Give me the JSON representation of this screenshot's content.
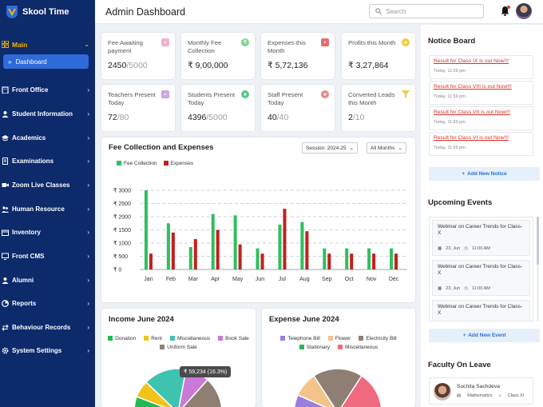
{
  "app": {
    "name": "Skool Time"
  },
  "header": {
    "title": "Admin Dashboard",
    "search_placeholder": "Search"
  },
  "sidebar": {
    "main_label": "Main",
    "dashboard_label": "Dashboard",
    "items": [
      {
        "label": "Front Office",
        "icon": "building-icon"
      },
      {
        "label": "Student Information",
        "icon": "user-icon"
      },
      {
        "label": "Academics",
        "icon": "graduation-cap-icon"
      },
      {
        "label": "Examinations",
        "icon": "document-icon"
      },
      {
        "label": "Zoom Live Classes",
        "icon": "video-icon"
      },
      {
        "label": "Human Resource",
        "icon": "users-icon"
      },
      {
        "label": "Inventory",
        "icon": "box-icon"
      },
      {
        "label": "Front CMS",
        "icon": "monitor-icon"
      },
      {
        "label": "Alumni",
        "icon": "user-circle-icon"
      },
      {
        "label": "Reports",
        "icon": "chart-pie-icon"
      },
      {
        "label": "Behaviour Records",
        "icon": "arrows-icon"
      },
      {
        "label": "System Settings",
        "icon": "gear-icon"
      }
    ]
  },
  "stats": [
    {
      "label": "Fee Awaiting payment",
      "value": "2450",
      "total": "/5000",
      "icon": "wallet-icon",
      "color": "#f3b0cf"
    },
    {
      "label": "Monthly Fee Collection",
      "value": "₹ 9,00,000",
      "total": "",
      "icon": "rupee-icon",
      "color": "#7fd48f"
    },
    {
      "label": "Expenses this Month",
      "value": "₹ 5,72,136",
      "total": "",
      "icon": "expense-icon",
      "color": "#e86a6a"
    },
    {
      "label": "Profits this Month",
      "value": "₹ 3,27,864",
      "total": "",
      "icon": "coins-icon",
      "color": "#f2cc3c"
    },
    {
      "label": "Teachers Present Today",
      "value": "72",
      "total": "/80",
      "icon": "briefcase-icon",
      "color": "#cba6e6"
    },
    {
      "label": "Students Present Today",
      "value": "4396",
      "total": "/5000",
      "icon": "student-icon",
      "color": "#58c98a"
    },
    {
      "label": "Staff Present Today",
      "value": "40",
      "total": "/40",
      "icon": "staff-icon",
      "color": "#e58a8a"
    },
    {
      "label": "Converted Leads this Month",
      "value": "2",
      "total": "/10",
      "icon": "funnel-icon",
      "color": "#f2cc3c"
    }
  ],
  "fee_chart": {
    "title": "Fee Collection and Expenses",
    "session_label": "Session: 2024-25",
    "range_label": "All Months"
  },
  "chart_data": [
    {
      "type": "bar",
      "categories": [
        "Jan",
        "Feb",
        "Mar",
        "Apr",
        "May",
        "Jun",
        "Jul",
        "Aug",
        "Sep",
        "Oct",
        "Nov",
        "Dec"
      ],
      "series": [
        {
          "name": "Fee Collection",
          "color": "#2ebf5e",
          "values": [
            3000,
            1750,
            850,
            2100,
            2050,
            800,
            1700,
            1800,
            800,
            800,
            800,
            800
          ]
        },
        {
          "name": "Expenses",
          "color": "#c0201d",
          "values": [
            600,
            1400,
            1150,
            1500,
            950,
            600,
            2300,
            1450,
            600,
            600,
            600,
            600
          ]
        }
      ],
      "title": "Fee Collection and Expenses",
      "ylim": [
        0,
        3000
      ],
      "yticks": [
        "₹ 0",
        "₹ 500",
        "₹ 1000",
        "₹ 1500",
        "₹ 2000",
        "₹ 2500",
        "₹ 3000"
      ],
      "grid": true,
      "legend": "top-left"
    }
  ],
  "income": {
    "title": "Income June 2024",
    "legend": [
      {
        "label": "Donation",
        "color": "#25b856"
      },
      {
        "label": "Rent",
        "color": "#f2c318"
      },
      {
        "label": "Miscellaneous",
        "color": "#3ec3b0"
      },
      {
        "label": "Book Sale",
        "color": "#c97ad6"
      },
      {
        "label": "Uniform Sale",
        "color": "#8f7f73"
      }
    ],
    "tooltip": "₹ 59,234 (16.3%)"
  },
  "expense": {
    "title": "Expense June 2024",
    "legend": [
      {
        "label": "Telephone Bill",
        "color": "#9a7fe0"
      },
      {
        "label": "Flower",
        "color": "#f4c38a"
      },
      {
        "label": "Electricity Bill",
        "color": "#8f7f73"
      },
      {
        "label": "Stationary",
        "color": "#25b856"
      },
      {
        "label": "Miscellaneous",
        "color": "#f06a7f"
      }
    ]
  },
  "notice_board": {
    "title": "Notice Board",
    "notices": [
      {
        "title": "Result for Class IX is out Now!!!",
        "date": "Today, 11:59 pm"
      },
      {
        "title": "Result for Class VIII is out Now!!!",
        "date": "Today, 11:59 pm"
      },
      {
        "title": "Result for Class VII is out Now!!!",
        "date": "Today, 11:59 pm"
      },
      {
        "title": "Result for Class VI is out Now!!!",
        "date": "Today, 11:59 pm"
      }
    ],
    "add_label": "Add New Notice"
  },
  "events": {
    "title": "Upcoming Events",
    "items": [
      {
        "title": "Webinar on Career Trends for Class-X",
        "date": "23, Jun",
        "time": "11:00 AM"
      },
      {
        "title": "Webinar on Career Trends for Class-X",
        "date": "23, Jun",
        "time": "11:00 AM"
      },
      {
        "title": "Webinar on Career Trends for Class-X",
        "date": "",
        "time": ""
      }
    ],
    "add_label": "Add New Event"
  },
  "faculty_leave": {
    "title": "Faculty On Leave",
    "name": "Suchita Sachdeva",
    "subject": "Mathematics",
    "class": "Class XI"
  }
}
